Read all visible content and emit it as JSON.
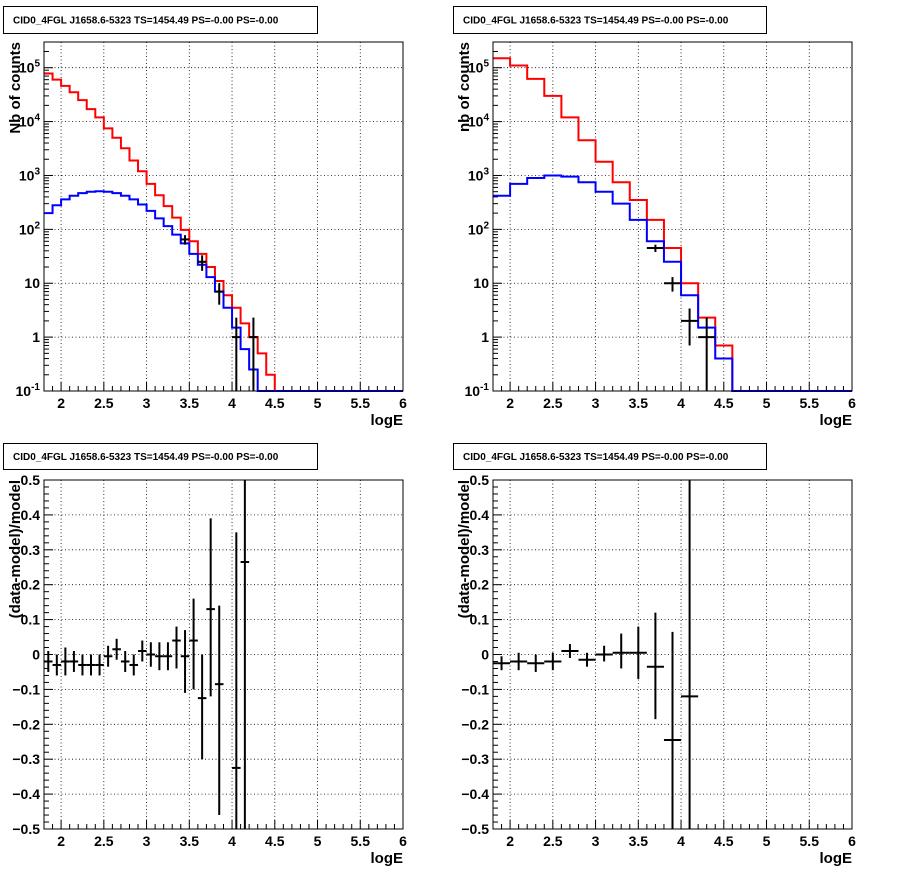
{
  "colors": {
    "total_model": "#ff0000",
    "source_model": "#0000ff",
    "data": "#000000"
  },
  "chart_data": [
    {
      "type": "histogram",
      "title": "CID0_4FGL J1658.6-5323 TS=1454.49 PS=-0.00 PS=-0.00",
      "xlabel": "logE",
      "ylabel": "Nb of counts",
      "xlim": [
        1.8,
        6.0
      ],
      "ylim": [
        0.1,
        300000
      ],
      "yscale": "log",
      "grid": true,
      "x_ticks": [
        2,
        2.5,
        3,
        3.5,
        4,
        4.5,
        5,
        5.5,
        6
      ],
      "x_tick_labels": [
        "2",
        "2.5",
        "3",
        "3.5",
        "4",
        "4.5",
        "5",
        "5.5",
        "6"
      ],
      "y_ticks": [
        0.1,
        1,
        10,
        100,
        1000,
        10000,
        100000
      ],
      "y_tick_labels": [
        "10^-1",
        "1",
        "10",
        "10^2",
        "10^3",
        "10^4",
        "10^5"
      ],
      "bin_edges": [
        1.8,
        1.9,
        2.0,
        2.1,
        2.2,
        2.3,
        2.4,
        2.5,
        2.6,
        2.7,
        2.8,
        2.9,
        3.0,
        3.1,
        3.2,
        3.3,
        3.4,
        3.5,
        3.6,
        3.7,
        3.8,
        3.9,
        4.0,
        4.1,
        4.2,
        4.3,
        4.4,
        4.5,
        4.6,
        4.7,
        4.8,
        4.9,
        5.0,
        5.1,
        5.2,
        5.3,
        5.4,
        5.5,
        5.6,
        5.7,
        5.8,
        5.9,
        6.0
      ],
      "series": [
        {
          "role": "total_model",
          "values": [
            78000,
            60000,
            46000,
            35000,
            25000,
            17000,
            12000,
            7500,
            5000,
            3200,
            1900,
            1200,
            700,
            430,
            270,
            165,
            98,
            60,
            35,
            20,
            11,
            6,
            3.5,
            1.8,
            1.0,
            0.5,
            0.2,
            0.1,
            0.1,
            0.1,
            0.1,
            0.1,
            0.1,
            0.1,
            0.1,
            0.1,
            0.1,
            0.1,
            0.1,
            0.1,
            0.1,
            0.1
          ]
        },
        {
          "role": "source_model",
          "values": [
            200,
            280,
            360,
            420,
            470,
            500,
            510,
            500,
            470,
            420,
            360,
            290,
            220,
            160,
            115,
            80,
            55,
            35,
            22,
            13,
            7,
            3.5,
            1.5,
            0.6,
            0.25,
            0.1,
            0.1,
            0.1,
            0.1,
            0.1,
            0.1,
            0.1,
            0.1,
            0.1,
            0.1,
            0.1,
            0.1,
            0.1,
            0.1,
            0.1,
            0.1,
            0.1
          ]
        },
        {
          "role": "data",
          "points": [
            {
              "x": 3.45,
              "xerr": 0.05,
              "y": 65,
              "ylo": 52,
              "yhi": 78
            },
            {
              "x": 3.65,
              "xerr": 0.05,
              "y": 25,
              "ylo": 17,
              "yhi": 33
            },
            {
              "x": 3.85,
              "xerr": 0.05,
              "y": 7,
              "ylo": 4,
              "yhi": 10
            },
            {
              "x": 4.05,
              "xerr": 0.05,
              "y": 1,
              "ylo": 0.1,
              "yhi": 2.3
            },
            {
              "x": 4.25,
              "xerr": 0.05,
              "y": 1,
              "ylo": 0.1,
              "yhi": 2.3
            }
          ]
        }
      ]
    },
    {
      "type": "histogram",
      "title": "CID0_4FGL J1658.6-5323 TS=1454.49 PS=-0.00 PS=-0.00",
      "xlabel": "logE",
      "ylabel": "nb of counts",
      "xlim": [
        1.8,
        6.0
      ],
      "ylim": [
        0.1,
        300000
      ],
      "yscale": "log",
      "grid": true,
      "x_ticks": [
        2,
        2.5,
        3,
        3.5,
        4,
        4.5,
        5,
        5.5,
        6
      ],
      "x_tick_labels": [
        "2",
        "2.5",
        "3",
        "3.5",
        "4",
        "4.5",
        "5",
        "5.5",
        "6"
      ],
      "y_ticks": [
        0.1,
        1,
        10,
        100,
        1000,
        10000,
        100000
      ],
      "y_tick_labels": [
        "10^-1",
        "1",
        "10",
        "10^2",
        "10^3",
        "10^4",
        "10^5"
      ],
      "bin_edges": [
        1.8,
        2.0,
        2.2,
        2.4,
        2.6,
        2.8,
        3.0,
        3.2,
        3.4,
        3.6,
        3.8,
        4.0,
        4.2,
        4.4,
        4.6,
        4.8,
        5.0,
        5.2,
        5.4,
        5.6,
        5.8,
        6.0
      ],
      "series": [
        {
          "role": "total_model",
          "values": [
            150000,
            110000,
            62000,
            30000,
            12000,
            4500,
            1800,
            750,
            350,
            150,
            45,
            10,
            2.3,
            0.7,
            0.1,
            0.1,
            0.1,
            0.1,
            0.1,
            0.1,
            0.1
          ]
        },
        {
          "role": "source_model",
          "values": [
            420,
            700,
            900,
            1000,
            950,
            750,
            500,
            300,
            150,
            60,
            25,
            6,
            1.5,
            0.4,
            0.1,
            0.1,
            0.1,
            0.1,
            0.1,
            0.1,
            0.1
          ]
        },
        {
          "role": "data",
          "points": [
            {
              "x": 3.7,
              "xerr": 0.1,
              "y": 45,
              "ylo": 38,
              "yhi": 52
            },
            {
              "x": 3.9,
              "xerr": 0.1,
              "y": 10,
              "ylo": 7,
              "yhi": 13
            },
            {
              "x": 4.1,
              "xerr": 0.1,
              "y": 2,
              "ylo": 0.7,
              "yhi": 3.4
            },
            {
              "x": 4.3,
              "xerr": 0.1,
              "y": 1,
              "ylo": 0.1,
              "yhi": 2.3
            }
          ]
        }
      ]
    },
    {
      "type": "scatter",
      "title": "CID0_4FGL J1658.6-5323 TS=1454.49 PS=-0.00 PS=-0.00",
      "xlabel": "logE",
      "ylabel": "(data-model)/model",
      "xlim": [
        1.8,
        6.0
      ],
      "ylim": [
        -0.5,
        0.5
      ],
      "grid": true,
      "x_ticks": [
        2,
        2.5,
        3,
        3.5,
        4,
        4.5,
        5,
        5.5,
        6
      ],
      "x_tick_labels": [
        "2",
        "2.5",
        "3",
        "3.5",
        "4",
        "4.5",
        "5",
        "5.5",
        "6"
      ],
      "y_ticks": [
        -0.5,
        -0.4,
        -0.3,
        -0.2,
        -0.1,
        0,
        0.1,
        0.2,
        0.3,
        0.4,
        0.5
      ],
      "y_tick_labels": [
        "−0.5",
        "−0.4",
        "−0.3",
        "−0.2",
        "−0.1",
        "0",
        "0.1",
        "0.2",
        "0.3",
        "0.4",
        "0.5"
      ],
      "series": [
        {
          "role": "data",
          "points": [
            {
              "x": 1.85,
              "xerr": 0.05,
              "y": -0.02,
              "ylo": -0.05,
              "yhi": 0.01
            },
            {
              "x": 1.95,
              "xerr": 0.05,
              "y": -0.03,
              "ylo": -0.06,
              "yhi": 0.0
            },
            {
              "x": 2.05,
              "xerr": 0.05,
              "y": -0.02,
              "ylo": -0.06,
              "yhi": 0.02
            },
            {
              "x": 2.15,
              "xerr": 0.05,
              "y": -0.02,
              "ylo": -0.05,
              "yhi": 0.01
            },
            {
              "x": 2.25,
              "xerr": 0.05,
              "y": -0.03,
              "ylo": -0.06,
              "yhi": 0.0
            },
            {
              "x": 2.35,
              "xerr": 0.05,
              "y": -0.03,
              "ylo": -0.06,
              "yhi": 0.0
            },
            {
              "x": 2.45,
              "xerr": 0.05,
              "y": -0.03,
              "ylo": -0.06,
              "yhi": 0.0
            },
            {
              "x": 2.55,
              "xerr": 0.05,
              "y": -0.005,
              "ylo": -0.035,
              "yhi": 0.025
            },
            {
              "x": 2.65,
              "xerr": 0.05,
              "y": 0.015,
              "ylo": -0.015,
              "yhi": 0.045
            },
            {
              "x": 2.75,
              "xerr": 0.05,
              "y": -0.02,
              "ylo": -0.05,
              "yhi": 0.01
            },
            {
              "x": 2.85,
              "xerr": 0.05,
              "y": -0.03,
              "ylo": -0.06,
              "yhi": 0.0
            },
            {
              "x": 2.95,
              "xerr": 0.05,
              "y": 0.01,
              "ylo": -0.02,
              "yhi": 0.04
            },
            {
              "x": 3.05,
              "xerr": 0.05,
              "y": 0.0,
              "ylo": -0.035,
              "yhi": 0.035
            },
            {
              "x": 3.15,
              "xerr": 0.05,
              "y": -0.005,
              "ylo": -0.045,
              "yhi": 0.035
            },
            {
              "x": 3.25,
              "xerr": 0.05,
              "y": -0.005,
              "ylo": -0.045,
              "yhi": 0.035
            },
            {
              "x": 3.35,
              "xerr": 0.05,
              "y": 0.04,
              "ylo": -0.04,
              "yhi": 0.08
            },
            {
              "x": 3.45,
              "xerr": 0.05,
              "y": -0.005,
              "ylo": -0.11,
              "yhi": 0.07
            },
            {
              "x": 3.55,
              "xerr": 0.05,
              "y": 0.04,
              "ylo": -0.1,
              "yhi": 0.16
            },
            {
              "x": 3.65,
              "xerr": 0.05,
              "y": -0.125,
              "ylo": -0.3,
              "yhi": 0.0
            },
            {
              "x": 3.75,
              "xerr": 0.05,
              "y": 0.13,
              "ylo": -0.12,
              "yhi": 0.39
            },
            {
              "x": 3.85,
              "xerr": 0.05,
              "y": -0.085,
              "ylo": -0.46,
              "yhi": 0.14
            },
            {
              "x": 4.05,
              "xerr": 0.05,
              "y": -0.325,
              "ylo": -0.5,
              "yhi": 0.35
            },
            {
              "x": 4.15,
              "xerr": 0.05,
              "y": 0.265,
              "ylo": -0.5,
              "yhi": 0.5
            }
          ]
        }
      ]
    },
    {
      "type": "scatter",
      "title": "CID0_4FGL J1658.6-5323 TS=1454.49 PS=-0.00 PS=-0.00",
      "xlabel": "logE",
      "ylabel": "(data-model)/model",
      "xlim": [
        1.8,
        6.0
      ],
      "ylim": [
        -0.5,
        0.5
      ],
      "grid": true,
      "x_ticks": [
        2,
        2.5,
        3,
        3.5,
        4,
        4.5,
        5,
        5.5,
        6
      ],
      "x_tick_labels": [
        "2",
        "2.5",
        "3",
        "3.5",
        "4",
        "4.5",
        "5",
        "5.5",
        "6"
      ],
      "y_ticks": [
        -0.5,
        -0.4,
        -0.3,
        -0.2,
        -0.1,
        0,
        0.1,
        0.2,
        0.3,
        0.4,
        0.5
      ],
      "y_tick_labels": [
        "−0.5",
        "−0.4",
        "−0.3",
        "−0.2",
        "−0.1",
        "0",
        "0.1",
        "0.2",
        "0.3",
        "0.4",
        "0.5"
      ],
      "series": [
        {
          "role": "data",
          "points": [
            {
              "x": 1.9,
              "xerr": 0.1,
              "y": -0.025,
              "ylo": -0.045,
              "yhi": -0.005
            },
            {
              "x": 2.1,
              "xerr": 0.1,
              "y": -0.02,
              "ylo": -0.045,
              "yhi": 0.005
            },
            {
              "x": 2.3,
              "xerr": 0.1,
              "y": -0.025,
              "ylo": -0.05,
              "yhi": 0.0
            },
            {
              "x": 2.5,
              "xerr": 0.1,
              "y": -0.02,
              "ylo": -0.045,
              "yhi": 0.005
            },
            {
              "x": 2.7,
              "xerr": 0.1,
              "y": 0.01,
              "ylo": -0.01,
              "yhi": 0.03
            },
            {
              "x": 2.9,
              "xerr": 0.1,
              "y": -0.015,
              "ylo": -0.035,
              "yhi": 0.005
            },
            {
              "x": 3.1,
              "xerr": 0.1,
              "y": 0.0,
              "ylo": -0.02,
              "yhi": 0.025
            },
            {
              "x": 3.3,
              "xerr": 0.1,
              "y": 0.005,
              "ylo": -0.04,
              "yhi": 0.06
            },
            {
              "x": 3.5,
              "xerr": 0.1,
              "y": 0.005,
              "ylo": -0.07,
              "yhi": 0.08
            },
            {
              "x": 3.7,
              "xerr": 0.1,
              "y": -0.035,
              "ylo": -0.185,
              "yhi": 0.12
            },
            {
              "x": 3.9,
              "xerr": 0.1,
              "y": -0.245,
              "ylo": -0.5,
              "yhi": 0.065
            },
            {
              "x": 4.1,
              "xerr": 0.1,
              "y": -0.12,
              "ylo": -0.5,
              "yhi": 0.5
            }
          ]
        }
      ]
    }
  ]
}
